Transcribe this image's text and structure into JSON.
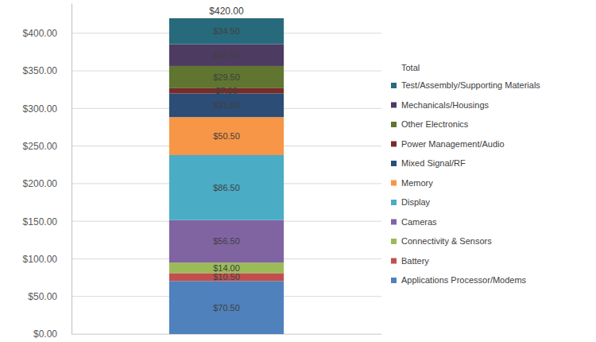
{
  "chart_data": {
    "type": "bar",
    "stacked": true,
    "grid": true,
    "data_labels": true,
    "legend": "right",
    "legend_title": "Total",
    "tick_labels": "y",
    "categories": [
      null
    ],
    "ylim": [
      0,
      440
    ],
    "yticks": [
      {
        "value": 0,
        "label": "$0.00"
      },
      {
        "value": 50,
        "label": "$50.00"
      },
      {
        "value": 100,
        "label": "$100.00"
      },
      {
        "value": 150,
        "label": "$150.00"
      },
      {
        "value": 200,
        "label": "$200.00"
      },
      {
        "value": 250,
        "label": "$250.00"
      },
      {
        "value": 300,
        "label": "$300.00"
      },
      {
        "value": 350,
        "label": "$350.00"
      },
      {
        "value": 400,
        "label": "$400.00"
      }
    ],
    "series": [
      {
        "name": "Applications Processor/Modems",
        "color": "#4f81bd",
        "values": [
          70.5
        ],
        "value_labels": [
          "$70.50"
        ]
      },
      {
        "name": "Battery",
        "color": "#c0504d",
        "values": [
          10.5
        ],
        "value_labels": [
          "$10.50"
        ]
      },
      {
        "name": "Connectivity & Sensors",
        "color": "#9bbb59",
        "values": [
          14.0
        ],
        "value_labels": [
          "$14.00"
        ]
      },
      {
        "name": "Cameras",
        "color": "#8064a2",
        "values": [
          56.5
        ],
        "value_labels": [
          "$56.50"
        ]
      },
      {
        "name": "Display",
        "color": "#4bacc6",
        "values": [
          86.5
        ],
        "value_labels": [
          "$86.50"
        ]
      },
      {
        "name": "Memory",
        "color": "#f79646",
        "values": [
          50.5
        ],
        "value_labels": [
          "$50.50"
        ]
      },
      {
        "name": "Mixed Signal/RF",
        "color": "#2c4d75",
        "values": [
          31.5
        ],
        "value_labels": [
          "$31.50"
        ]
      },
      {
        "name": "Power Management/Audio",
        "color": "#772c2a",
        "values": [
          7.0
        ],
        "value_labels": [
          "$7.00"
        ]
      },
      {
        "name": "Other Electronics",
        "color": "#5f7530",
        "values": [
          29.5
        ],
        "value_labels": [
          "$29.50"
        ]
      },
      {
        "name": "Mechanicals/Housings",
        "color": "#4d3b62",
        "values": [
          29.0
        ],
        "value_labels": [
          "$29.00"
        ]
      },
      {
        "name": "Test/Assembly/Supporting Materials",
        "color": "#276a7c",
        "values": [
          34.5
        ],
        "value_labels": [
          "$34.50"
        ]
      }
    ],
    "annotations": [
      {
        "text": "$420.00",
        "value": 420
      }
    ]
  }
}
